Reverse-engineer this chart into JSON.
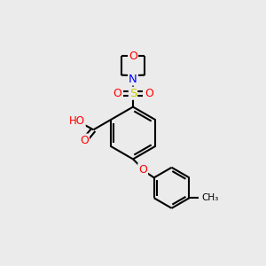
{
  "background_color": "#ebebeb",
  "bond_color": "#000000",
  "atom_colors": {
    "O": "#ff0000",
    "N": "#0000ff",
    "S": "#cccc00",
    "C": "#000000",
    "H": "#555555"
  },
  "figsize": [
    3.0,
    3.0
  ],
  "dpi": 100,
  "lw": 1.5
}
